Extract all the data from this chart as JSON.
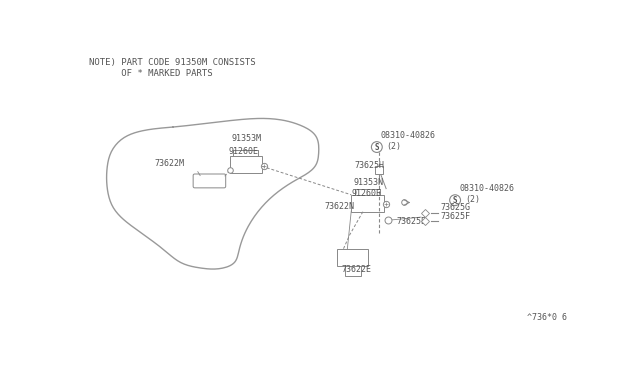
{
  "bg_color": "#ffffff",
  "line_color": "#888888",
  "text_color": "#555555",
  "note_line1": "NOTE) PART CODE 91350M CONSISTS",
  "note_line2": "      OF * MARKED PARTS",
  "footer": "^736*0 6",
  "panel_points": [
    [
      0.115,
      0.5
    ],
    [
      0.13,
      0.58
    ],
    [
      0.145,
      0.63
    ],
    [
      0.175,
      0.69
    ],
    [
      0.24,
      0.735
    ],
    [
      0.33,
      0.755
    ],
    [
      0.43,
      0.755
    ],
    [
      0.48,
      0.74
    ],
    [
      0.51,
      0.72
    ],
    [
      0.52,
      0.7
    ],
    [
      0.455,
      0.5
    ],
    [
      0.43,
      0.455
    ],
    [
      0.39,
      0.415
    ],
    [
      0.31,
      0.385
    ],
    [
      0.22,
      0.37
    ],
    [
      0.155,
      0.375
    ],
    [
      0.118,
      0.405
    ],
    [
      0.11,
      0.45
    ],
    [
      0.115,
      0.5
    ]
  ]
}
